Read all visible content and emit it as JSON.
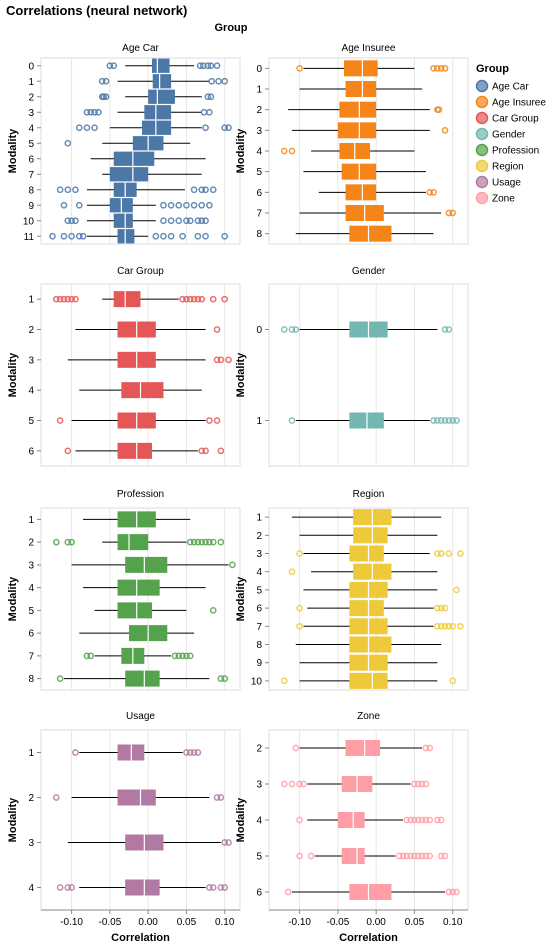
{
  "chart_data": {
    "type": "boxplot",
    "title": "Correlations (neural network)",
    "column_header": "Group",
    "xlabel": "Correlation",
    "ylabel": "Modality",
    "xlim": [
      -0.14,
      0.12
    ],
    "x_ticks": [
      "-0.10",
      "-0.05",
      "0.00",
      "0.05",
      "0.10"
    ],
    "x_tick_values": [
      -0.1,
      -0.05,
      0.0,
      0.05,
      0.1
    ],
    "grid": true,
    "legend": {
      "title": "Group",
      "placement": "right",
      "items": [
        {
          "name": "Age Car",
          "color": "#4c78a8"
        },
        {
          "name": "Age Insuree",
          "color": "#f58518"
        },
        {
          "name": "Car Group",
          "color": "#e45756"
        },
        {
          "name": "Gender",
          "color": "#72b7b2"
        },
        {
          "name": "Profession",
          "color": "#54a24b"
        },
        {
          "name": "Region",
          "color": "#eeca3b"
        },
        {
          "name": "Usage",
          "color": "#b279a2"
        },
        {
          "name": "Zone",
          "color": "#ff9da6"
        }
      ]
    },
    "panels": [
      {
        "title": "Age Car",
        "color": "#4c78a8",
        "rows": [
          {
            "modality": "0",
            "min": -0.03,
            "q1": 0.005,
            "median": 0.012,
            "q3": 0.028,
            "max": 0.06,
            "outliers": [
              -0.05,
              -0.045,
              0.068,
              0.072,
              0.078,
              0.082,
              0.09
            ]
          },
          {
            "modality": "1",
            "min": -0.04,
            "q1": 0.006,
            "median": 0.015,
            "q3": 0.03,
            "max": 0.08,
            "outliers": [
              -0.06,
              -0.055,
              0.083,
              0.092,
              0.1
            ]
          },
          {
            "modality": "2",
            "min": -0.03,
            "q1": 0.0,
            "median": 0.012,
            "q3": 0.035,
            "max": 0.07,
            "outliers": [
              -0.06,
              -0.058,
              -0.055,
              0.078,
              0.082
            ]
          },
          {
            "modality": "3",
            "min": -0.04,
            "q1": -0.005,
            "median": 0.01,
            "q3": 0.03,
            "max": 0.07,
            "outliers": [
              -0.08,
              -0.075,
              -0.07,
              -0.065,
              0.073,
              0.08
            ]
          },
          {
            "modality": "4",
            "min": -0.05,
            "q1": -0.008,
            "median": 0.01,
            "q3": 0.03,
            "max": 0.07,
            "outliers": [
              -0.09,
              -0.08,
              -0.07,
              0.075,
              0.1,
              0.105
            ]
          },
          {
            "modality": "5",
            "min": -0.06,
            "q1": -0.02,
            "median": 0.0,
            "q3": 0.02,
            "max": 0.055,
            "outliers": [
              -0.105
            ]
          },
          {
            "modality": "6",
            "min": -0.075,
            "q1": -0.045,
            "median": -0.02,
            "q3": 0.008,
            "max": 0.075,
            "outliers": []
          },
          {
            "modality": "7",
            "min": -0.06,
            "q1": -0.05,
            "median": -0.02,
            "q3": 0.0,
            "max": 0.07,
            "outliers": []
          },
          {
            "modality": "8",
            "min": -0.08,
            "q1": -0.045,
            "median": -0.03,
            "q3": -0.015,
            "max": 0.048,
            "outliers": [
              -0.115,
              -0.105,
              -0.095,
              0.06,
              0.07,
              0.075,
              0.085
            ]
          },
          {
            "modality": "9",
            "min": -0.08,
            "q1": -0.05,
            "median": -0.035,
            "q3": -0.02,
            "max": 0.01,
            "outliers": [
              -0.11,
              -0.09,
              0.02,
              0.03,
              0.04,
              0.05,
              0.06,
              0.07,
              0.08
            ]
          },
          {
            "modality": "10",
            "min": -0.08,
            "q1": -0.045,
            "median": -0.03,
            "q3": -0.02,
            "max": 0.01,
            "outliers": [
              -0.105,
              -0.1,
              -0.095,
              0.02,
              0.03,
              0.04,
              0.05,
              0.055,
              0.065,
              0.07,
              0.075
            ]
          },
          {
            "modality": "11",
            "min": -0.08,
            "q1": -0.04,
            "median": -0.03,
            "q3": -0.018,
            "max": 0.0,
            "outliers": [
              -0.125,
              -0.11,
              -0.1,
              -0.09,
              -0.085,
              0.01,
              0.02,
              0.03,
              0.045,
              0.065,
              0.075,
              0.1
            ]
          }
        ]
      },
      {
        "title": "Age Insuree",
        "color": "#f58518",
        "rows": [
          {
            "modality": "0",
            "min": -0.095,
            "q1": -0.042,
            "median": -0.018,
            "q3": 0.002,
            "max": 0.05,
            "outliers": [
              -0.1,
              0.075,
              0.08,
              0.085,
              0.09
            ]
          },
          {
            "modality": "1",
            "min": -0.1,
            "q1": -0.04,
            "median": -0.018,
            "q3": 0.0,
            "max": 0.06,
            "outliers": []
          },
          {
            "modality": "2",
            "min": -0.115,
            "q1": -0.048,
            "median": -0.022,
            "q3": 0.0,
            "max": 0.07,
            "outliers": [
              0.08,
              0.082
            ]
          },
          {
            "modality": "3",
            "min": -0.11,
            "q1": -0.05,
            "median": -0.022,
            "q3": 0.0,
            "max": 0.07,
            "outliers": [
              0.09
            ]
          },
          {
            "modality": "4",
            "min": -0.085,
            "q1": -0.048,
            "median": -0.028,
            "q3": -0.008,
            "max": 0.05,
            "outliers": [
              -0.12,
              -0.11
            ]
          },
          {
            "modality": "5",
            "min": -0.095,
            "q1": -0.045,
            "median": -0.022,
            "q3": 0.0,
            "max": 0.065,
            "outliers": []
          },
          {
            "modality": "6",
            "min": -0.075,
            "q1": -0.04,
            "median": -0.018,
            "q3": 0.0,
            "max": 0.065,
            "outliers": [
              0.07,
              0.075
            ]
          },
          {
            "modality": "7",
            "min": -0.1,
            "q1": -0.04,
            "median": -0.015,
            "q3": 0.01,
            "max": 0.085,
            "outliers": [
              0.095,
              0.1
            ]
          },
          {
            "modality": "8",
            "min": -0.105,
            "q1": -0.035,
            "median": -0.01,
            "q3": 0.02,
            "max": 0.075,
            "outliers": []
          }
        ]
      },
      {
        "title": "Car Group",
        "color": "#e45756",
        "rows": [
          {
            "modality": "1",
            "min": -0.06,
            "q1": -0.045,
            "median": -0.03,
            "q3": -0.01,
            "max": 0.04,
            "outliers": [
              -0.12,
              -0.115,
              -0.11,
              -0.105,
              -0.1,
              -0.095,
              0.045,
              0.05,
              0.055,
              0.06,
              0.065,
              0.07,
              0.085,
              0.1
            ]
          },
          {
            "modality": "2",
            "min": -0.095,
            "q1": -0.04,
            "median": -0.015,
            "q3": 0.01,
            "max": 0.075,
            "outliers": [
              0.09
            ]
          },
          {
            "modality": "3",
            "min": -0.105,
            "q1": -0.04,
            "median": -0.015,
            "q3": 0.01,
            "max": 0.075,
            "outliers": [
              0.09,
              0.095,
              0.105
            ]
          },
          {
            "modality": "4",
            "min": -0.09,
            "q1": -0.035,
            "median": -0.01,
            "q3": 0.02,
            "max": 0.07,
            "outliers": []
          },
          {
            "modality": "5",
            "min": -0.1,
            "q1": -0.04,
            "median": -0.015,
            "q3": 0.01,
            "max": 0.075,
            "outliers": [
              -0.115,
              0.08,
              0.09
            ]
          },
          {
            "modality": "6",
            "min": -0.095,
            "q1": -0.04,
            "median": -0.015,
            "q3": 0.005,
            "max": 0.065,
            "outliers": [
              -0.105,
              0.07,
              0.075,
              0.095
            ]
          }
        ]
      },
      {
        "title": "Gender",
        "color": "#72b7b2",
        "rows": [
          {
            "modality": "0",
            "min": -0.1,
            "q1": -0.035,
            "median": -0.01,
            "q3": 0.015,
            "max": 0.08,
            "outliers": [
              -0.12,
              -0.11,
              -0.105,
              0.09,
              0.095
            ]
          },
          {
            "modality": "1",
            "min": -0.105,
            "q1": -0.035,
            "median": -0.012,
            "q3": 0.01,
            "max": 0.07,
            "outliers": [
              -0.11,
              0.075,
              0.08,
              0.085,
              0.09,
              0.095,
              0.1,
              0.105
            ]
          }
        ]
      },
      {
        "title": "Profession",
        "color": "#54a24b",
        "rows": [
          {
            "modality": "1",
            "min": -0.085,
            "q1": -0.04,
            "median": -0.015,
            "q3": 0.01,
            "max": 0.055,
            "outliers": []
          },
          {
            "modality": "2",
            "min": -0.06,
            "q1": -0.04,
            "median": -0.025,
            "q3": 0.0,
            "max": 0.05,
            "outliers": [
              -0.12,
              -0.105,
              -0.1,
              0.055,
              0.06,
              0.065,
              0.07,
              0.075,
              0.08,
              0.085,
              0.095
            ]
          },
          {
            "modality": "3",
            "min": -0.1,
            "q1": -0.03,
            "median": -0.005,
            "q3": 0.025,
            "max": 0.105,
            "outliers": [
              0.11
            ]
          },
          {
            "modality": "4",
            "min": -0.085,
            "q1": -0.04,
            "median": -0.015,
            "q3": 0.015,
            "max": 0.075,
            "outliers": []
          },
          {
            "modality": "5",
            "min": -0.07,
            "q1": -0.04,
            "median": -0.015,
            "q3": 0.005,
            "max": 0.05,
            "outliers": [
              0.085
            ]
          },
          {
            "modality": "6",
            "min": -0.09,
            "q1": -0.025,
            "median": 0.0,
            "q3": 0.025,
            "max": 0.06,
            "outliers": []
          },
          {
            "modality": "7",
            "min": -0.07,
            "q1": -0.035,
            "median": -0.02,
            "q3": -0.005,
            "max": 0.03,
            "outliers": [
              -0.08,
              -0.075,
              0.035,
              0.04,
              0.045,
              0.05,
              0.055
            ]
          },
          {
            "modality": "8",
            "min": -0.11,
            "q1": -0.03,
            "median": -0.005,
            "q3": 0.015,
            "max": 0.08,
            "outliers": [
              -0.115,
              0.095,
              0.1
            ]
          }
        ]
      },
      {
        "title": "Region",
        "color": "#eeca3b",
        "rows": [
          {
            "modality": "1",
            "min": -0.11,
            "q1": -0.03,
            "median": -0.005,
            "q3": 0.02,
            "max": 0.085,
            "outliers": []
          },
          {
            "modality": "2",
            "min": -0.1,
            "q1": -0.03,
            "median": -0.005,
            "q3": 0.015,
            "max": 0.08,
            "outliers": []
          },
          {
            "modality": "3",
            "min": -0.095,
            "q1": -0.035,
            "median": -0.01,
            "q3": 0.01,
            "max": 0.07,
            "outliers": [
              -0.1,
              0.08,
              0.085,
              0.095,
              0.11
            ]
          },
          {
            "modality": "4",
            "min": -0.085,
            "q1": -0.03,
            "median": -0.005,
            "q3": 0.02,
            "max": 0.08,
            "outliers": [
              -0.11
            ]
          },
          {
            "modality": "5",
            "min": -0.095,
            "q1": -0.035,
            "median": -0.01,
            "q3": 0.015,
            "max": 0.08,
            "outliers": [
              0.105
            ]
          },
          {
            "modality": "6",
            "min": -0.09,
            "q1": -0.035,
            "median": -0.01,
            "q3": 0.01,
            "max": 0.075,
            "outliers": [
              -0.1,
              0.08,
              0.085,
              0.09
            ]
          },
          {
            "modality": "7",
            "min": -0.095,
            "q1": -0.035,
            "median": -0.01,
            "q3": 0.015,
            "max": 0.075,
            "outliers": [
              -0.1,
              0.08,
              0.085,
              0.09,
              0.095,
              0.1,
              0.11
            ]
          },
          {
            "modality": "8",
            "min": -0.105,
            "q1": -0.035,
            "median": -0.01,
            "q3": 0.02,
            "max": 0.085,
            "outliers": []
          },
          {
            "modality": "9",
            "min": -0.1,
            "q1": -0.035,
            "median": -0.01,
            "q3": 0.015,
            "max": 0.08,
            "outliers": []
          },
          {
            "modality": "10",
            "min": -0.1,
            "q1": -0.035,
            "median": -0.005,
            "q3": 0.015,
            "max": 0.08,
            "outliers": [
              -0.12,
              0.1
            ]
          }
        ]
      },
      {
        "title": "Usage",
        "color": "#b279a2",
        "rows": [
          {
            "modality": "1",
            "min": -0.09,
            "q1": -0.04,
            "median": -0.022,
            "q3": -0.005,
            "max": 0.045,
            "outliers": [
              -0.095,
              0.05,
              0.055,
              0.06,
              0.065
            ]
          },
          {
            "modality": "2",
            "min": -0.1,
            "q1": -0.04,
            "median": -0.01,
            "q3": 0.01,
            "max": 0.08,
            "outliers": [
              -0.12,
              0.09,
              0.095
            ]
          },
          {
            "modality": "3",
            "min": -0.105,
            "q1": -0.03,
            "median": -0.005,
            "q3": 0.02,
            "max": 0.095,
            "outliers": [
              0.1,
              0.105
            ]
          },
          {
            "modality": "4",
            "min": -0.09,
            "q1": -0.03,
            "median": -0.005,
            "q3": 0.015,
            "max": 0.075,
            "outliers": [
              -0.115,
              -0.105,
              -0.1,
              0.08,
              0.085,
              0.095,
              0.1
            ]
          }
        ]
      },
      {
        "title": "Zone",
        "color": "#ff9da6",
        "rows": [
          {
            "modality": "2",
            "min": -0.1,
            "q1": -0.04,
            "median": -0.015,
            "q3": 0.005,
            "max": 0.06,
            "outliers": [
              -0.105,
              0.065,
              0.07
            ]
          },
          {
            "modality": "3",
            "min": -0.09,
            "q1": -0.045,
            "median": -0.025,
            "q3": -0.005,
            "max": 0.045,
            "outliers": [
              -0.12,
              -0.11,
              -0.1,
              -0.095,
              0.05,
              0.055,
              0.06,
              0.065
            ]
          },
          {
            "modality": "4",
            "min": -0.09,
            "q1": -0.05,
            "median": -0.03,
            "q3": -0.015,
            "max": 0.035,
            "outliers": [
              -0.1,
              0.04,
              0.045,
              0.05,
              0.055,
              0.06,
              0.065,
              0.07,
              0.08,
              0.085
            ]
          },
          {
            "modality": "5",
            "min": -0.08,
            "q1": -0.045,
            "median": -0.025,
            "q3": -0.015,
            "max": 0.025,
            "outliers": [
              -0.1,
              -0.085,
              0.03,
              0.035,
              0.04,
              0.045,
              0.05,
              0.055,
              0.06,
              0.065,
              0.07,
              0.085,
              0.09
            ]
          },
          {
            "modality": "6",
            "min": -0.11,
            "q1": -0.035,
            "median": -0.01,
            "q3": 0.02,
            "max": 0.09,
            "outliers": [
              -0.115,
              0.095,
              0.1,
              0.105
            ]
          }
        ]
      }
    ]
  }
}
